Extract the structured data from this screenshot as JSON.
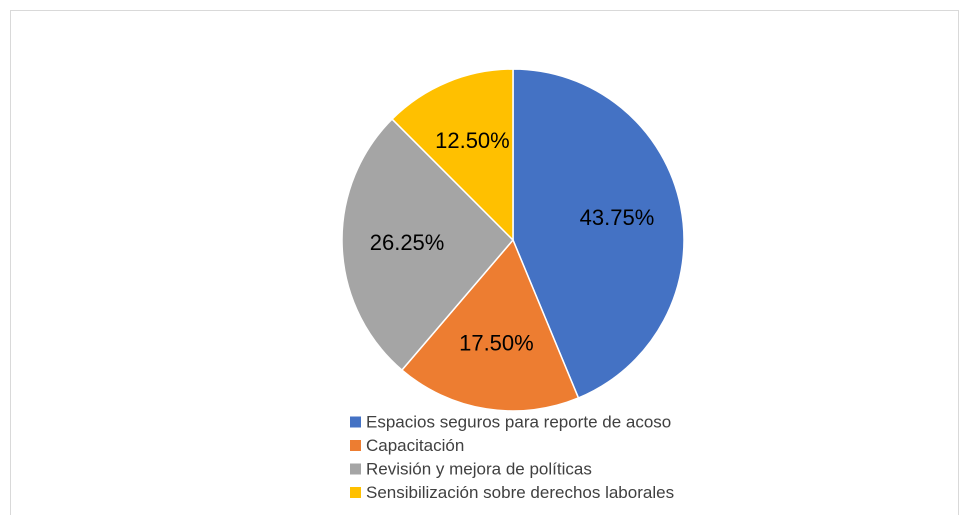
{
  "chart_data": {
    "type": "pie",
    "categories": [
      "Espacios seguros para reporte de acoso",
      "Capacitación",
      "Revisión y mejora de políticas",
      "Sensibilización sobre derechos laborales"
    ],
    "values": [
      43.75,
      17.5,
      26.25,
      12.5
    ],
    "value_labels": [
      "43.75%",
      "17.50%",
      "26.25%",
      "12.50%"
    ],
    "colors": [
      "#4472c4",
      "#ed7d31",
      "#a5a5a5",
      "#ffc000"
    ],
    "legend": "bottom"
  }
}
